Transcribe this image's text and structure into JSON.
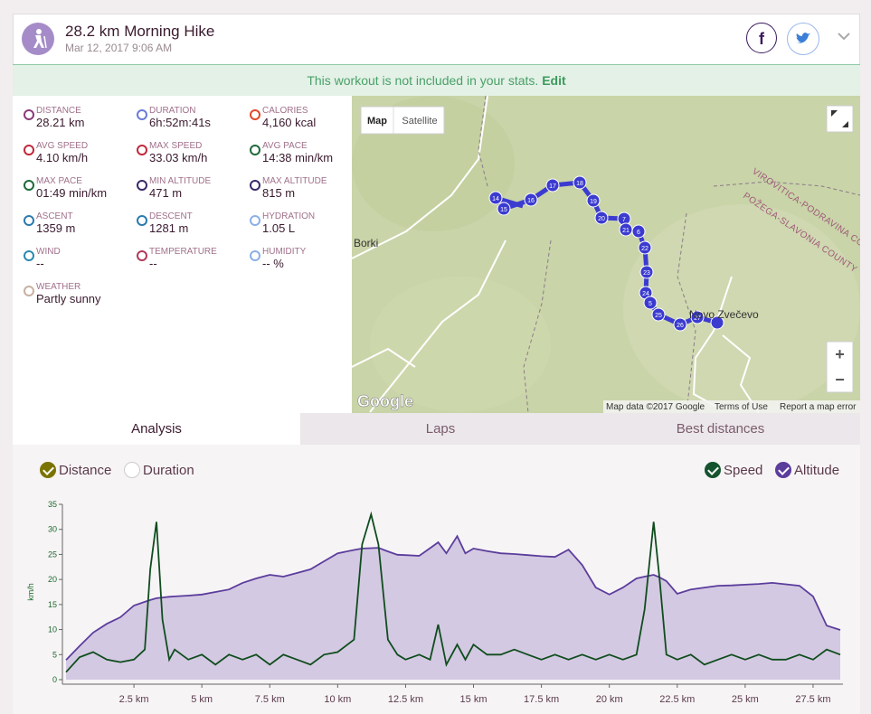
{
  "header": {
    "title": "28.2 km Morning Hike",
    "date": "Mar 12, 2017 9:06 AM"
  },
  "banner": {
    "text": "This workout is not included in your stats.",
    "link": "Edit"
  },
  "stats": [
    {
      "label": "DISTANCE",
      "value": "28.21 km"
    },
    {
      "label": "DURATION",
      "value": "6h:52m:41s"
    },
    {
      "label": "CALORIES",
      "value": "4,160 kcal"
    },
    {
      "label": "AVG SPEED",
      "value": "4.10 km/h"
    },
    {
      "label": "MAX SPEED",
      "value": "33.03 km/h"
    },
    {
      "label": "AVG PACE",
      "value": "14:38 min/km"
    },
    {
      "label": "MAX PACE",
      "value": "01:49 min/km"
    },
    {
      "label": "MIN ALTITUDE",
      "value": "471 m"
    },
    {
      "label": "MAX ALTITUDE",
      "value": "815 m"
    },
    {
      "label": "ASCENT",
      "value": "1359 m"
    },
    {
      "label": "DESCENT",
      "value": "1281 m"
    },
    {
      "label": "HYDRATION",
      "value": "1.05 L"
    },
    {
      "label": "WIND",
      "value": "--"
    },
    {
      "label": "TEMPERATURE",
      "value": "--"
    },
    {
      "label": "HUMIDITY",
      "value": "-- %"
    },
    {
      "label": "WEATHER",
      "value": "Partly sunny"
    }
  ],
  "map": {
    "buttons": [
      "Map",
      "Satellite"
    ],
    "places": [
      "Borki",
      "Novo Zvečevo",
      "VIROVITICA-PODRAVINA COUNTY",
      "POŽEGA-SLAVONIA COUNTY"
    ],
    "markers": [
      "14",
      "15",
      "16",
      "17",
      "18",
      "19",
      "20",
      "7",
      "21",
      "6",
      "22",
      "23",
      "24",
      "5",
      "25",
      "26",
      "27"
    ],
    "logo": "Google",
    "attribution": [
      "Map data ©2017 Google",
      "Terms of Use",
      "Report a map error"
    ],
    "zoom": [
      "+",
      "−"
    ]
  },
  "tabs": [
    "Analysis",
    "Laps",
    "Best distances"
  ],
  "chart_controls": [
    {
      "label": "Distance",
      "checked": true,
      "color": "#7a7300"
    },
    {
      "label": "Duration",
      "checked": false,
      "color": "#7a7300"
    },
    {
      "label": "Speed",
      "checked": true,
      "color": "#14532d"
    },
    {
      "label": "Altitude",
      "checked": true,
      "color": "#5b3d9c"
    }
  ],
  "chart_data": {
    "type": "line",
    "y_label": "km/h",
    "x": [
      0,
      0.5,
      1,
      1.5,
      2,
      2.5,
      2.9,
      3.1,
      3.33,
      3.55,
      3.8,
      4,
      4.5,
      5,
      5.5,
      6,
      6.5,
      7,
      7.5,
      8,
      8.5,
      9,
      9.5,
      10,
      10.6,
      10.9,
      11.23,
      11.5,
      11.85,
      12.2,
      12.5,
      13,
      13.4,
      13.7,
      14,
      14.4,
      14.7,
      15,
      15.5,
      16,
      16.5,
      17,
      17.5,
      18,
      18.5,
      19,
      19.5,
      20,
      20.5,
      21,
      21.3,
      21.63,
      21.85,
      22.1,
      22.5,
      23,
      23.5,
      24,
      24.5,
      25,
      25.5,
      26,
      26.5,
      27,
      27.5,
      28,
      28.5
    ],
    "xlim": [
      0,
      28.6
    ],
    "xticks": [
      {
        "value": 2.5,
        "label": "2.5 km"
      },
      {
        "value": 5,
        "label": "5 km"
      },
      {
        "value": 7.5,
        "label": "7.5 km"
      },
      {
        "value": 10,
        "label": "10 km"
      },
      {
        "value": 12.5,
        "label": "12.5 km"
      },
      {
        "value": 15,
        "label": "15 km"
      },
      {
        "value": 17.5,
        "label": "17.5 km"
      },
      {
        "value": 20,
        "label": "20 km"
      },
      {
        "value": 22.5,
        "label": "22.5 km"
      },
      {
        "value": 25,
        "label": "25 km"
      },
      {
        "value": 27.5,
        "label": "27.5 km"
      }
    ],
    "ylim": [
      0,
      35
    ],
    "yticks": [
      0,
      5,
      10,
      15,
      20,
      25,
      30,
      35
    ],
    "y2lim": [
      420,
      900
    ],
    "series": [
      {
        "name": "Altitude",
        "color": "#5b3d9c",
        "fill": "#d4c9e2",
        "axis": "y2",
        "values": [
          474,
          512,
          549,
          573,
          591,
          623,
          633,
          638,
          643,
          645,
          647,
          648,
          650,
          653,
          660,
          667,
          685,
          697,
          707,
          702,
          712,
          722,
          744,
          766,
          775,
          779,
          780,
          781,
          771,
          762,
          761,
          759,
          780,
          796,
          766,
          813,
          766,
          779,
          772,
          766,
          764,
          761,
          758,
          756,
          776,
          734,
          672,
          653,
          672,
          697,
          702,
          707,
          700,
          690,
          655,
          667,
          672,
          677,
          678,
          680,
          682,
          685,
          681,
          677,
          648,
          568,
          556
        ]
      },
      {
        "name": "Speed",
        "color": "#0f4d1e",
        "values": [
          1.5,
          4.5,
          5.5,
          4,
          3.5,
          4,
          6,
          22,
          31.5,
          12,
          4,
          6,
          4,
          5,
          3,
          5,
          4,
          5,
          3,
          5,
          4,
          3,
          5,
          5.5,
          8,
          27,
          33,
          27,
          8,
          5,
          4,
          5,
          4,
          11,
          3,
          7,
          4,
          7,
          5,
          5,
          6,
          5,
          4,
          5,
          4,
          5,
          4,
          5,
          4,
          5,
          14,
          31.5,
          20,
          5,
          4,
          5,
          3,
          4,
          5,
          4,
          5,
          4,
          4,
          5,
          4,
          6,
          5
        ]
      }
    ]
  }
}
